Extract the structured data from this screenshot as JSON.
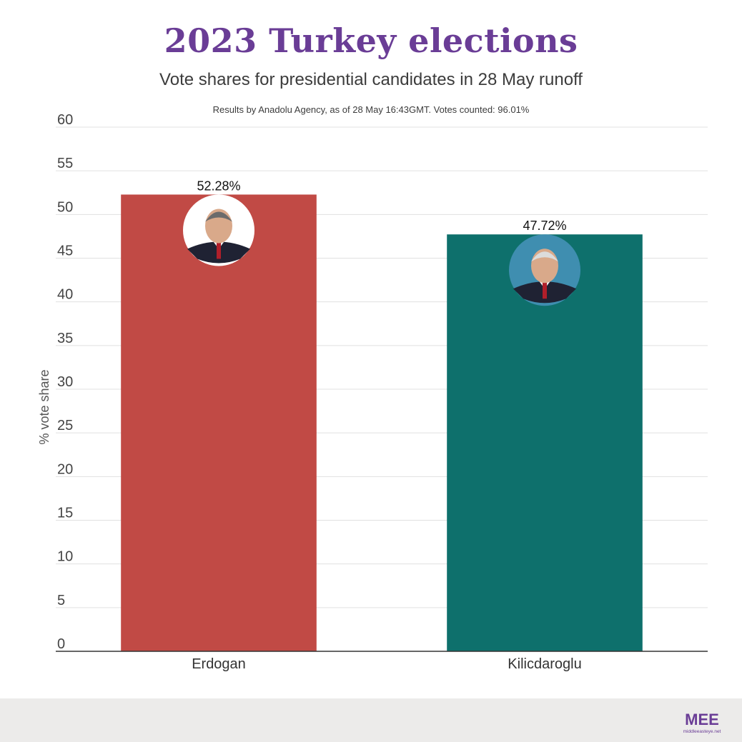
{
  "header": {
    "title": "2023 Turkey elections",
    "subtitle": "Vote shares for presidential candidates in 28 May runoff",
    "note": "Results by Anadolu Agency, as of 28 May 16:43GMT. Votes counted: 96.01%"
  },
  "chart_data": {
    "type": "bar",
    "categories": [
      "Erdogan",
      "Kilicdaroglu"
    ],
    "values": [
      52.28,
      47.72
    ],
    "data_labels": [
      "52.28%",
      "47.72%"
    ],
    "colors": [
      "#c14a45",
      "#0e706c"
    ],
    "title": "2023 Turkey elections",
    "subtitle": "Vote shares for presidential candidates in 28 May runoff",
    "xlabel": "",
    "ylabel": "% vote share",
    "ylim": [
      0,
      60
    ],
    "yticks": [
      0,
      5,
      10,
      15,
      20,
      25,
      30,
      35,
      40,
      45,
      50,
      55,
      60
    ],
    "grid": true,
    "legend": "none"
  },
  "footer": {
    "background": "#ecebea",
    "logo_text": "MEE",
    "logo_caption": "middleeasteye.net",
    "logo_color": "#6a3d96"
  }
}
